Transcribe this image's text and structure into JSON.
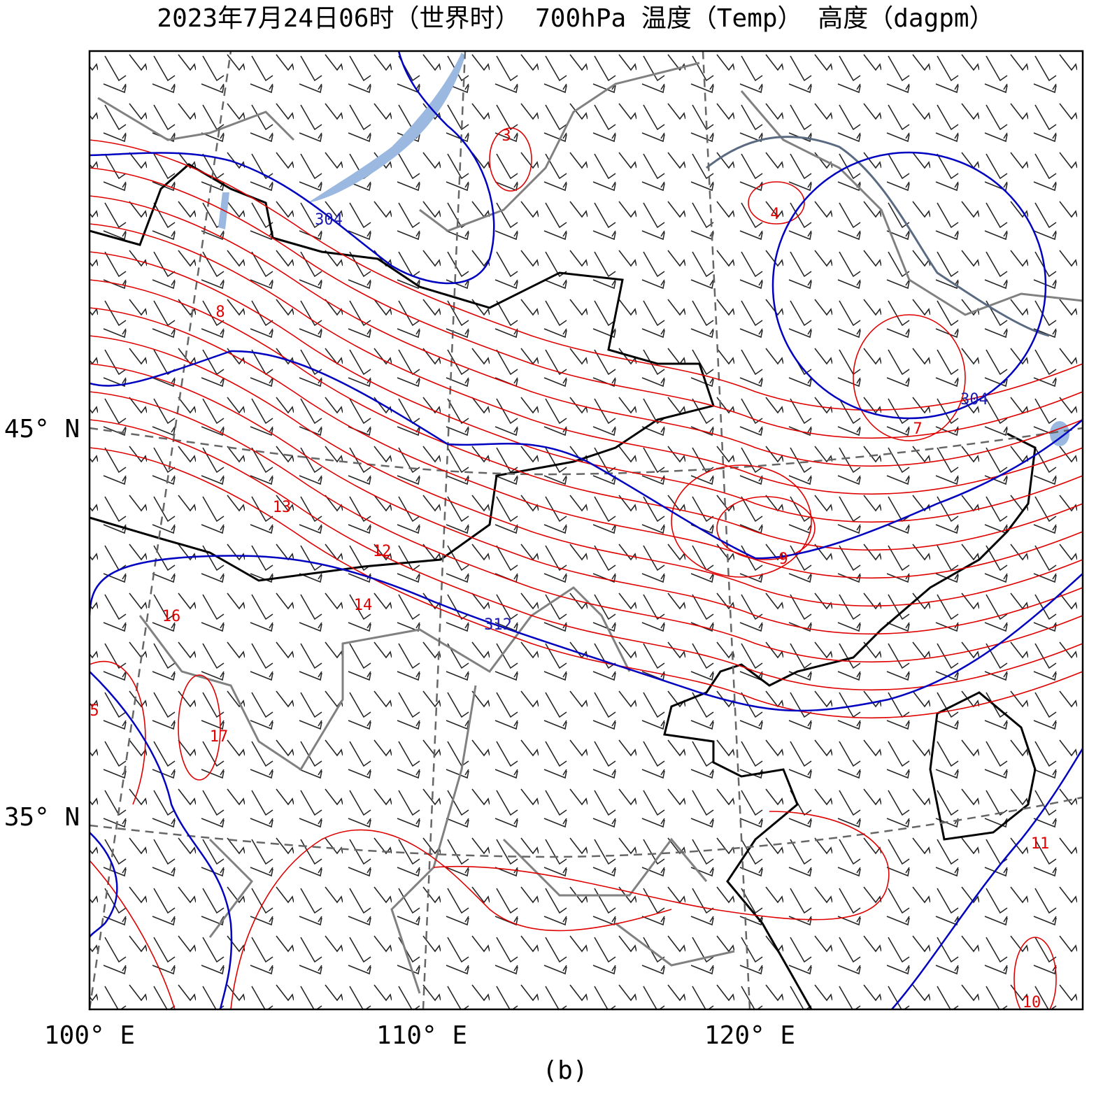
{
  "title": "2023年7月24日06时（世界时） 700hPa 温度（Temp） 高度（dagpm）",
  "caption": "(b)",
  "latitude_labels": [
    "45° N",
    "35° N"
  ],
  "longitude_labels": [
    "100° E",
    "110° E",
    "120° E"
  ],
  "temperature_labels": [
    "3",
    "4",
    "8",
    "13",
    "12",
    "14",
    "16",
    "17",
    "9",
    "7",
    "11",
    "10",
    "5"
  ],
  "height_labels": [
    "304",
    "304",
    "312"
  ]
}
